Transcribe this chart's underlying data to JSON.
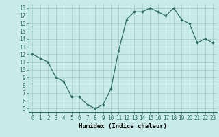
{
  "x": [
    0,
    1,
    2,
    3,
    4,
    5,
    6,
    7,
    8,
    9,
    10,
    11,
    12,
    13,
    14,
    15,
    16,
    17,
    18,
    19,
    20,
    21,
    22,
    23
  ],
  "y": [
    12,
    11.5,
    11,
    9,
    8.5,
    6.5,
    6.5,
    5.5,
    5,
    5.5,
    7.5,
    12.5,
    16.5,
    17.5,
    17.5,
    18,
    17.5,
    17,
    18,
    16.5,
    16,
    13.5,
    14,
    13.5
  ],
  "xlabel": "Humidex (Indice chaleur)",
  "xlim": [
    -0.5,
    23.5
  ],
  "ylim": [
    4.5,
    18.5
  ],
  "yticks": [
    5,
    6,
    7,
    8,
    9,
    10,
    11,
    12,
    13,
    14,
    15,
    16,
    17,
    18
  ],
  "xticks": [
    0,
    1,
    2,
    3,
    4,
    5,
    6,
    7,
    8,
    9,
    10,
    11,
    12,
    13,
    14,
    15,
    16,
    17,
    18,
    19,
    20,
    21,
    22,
    23
  ],
  "line_color": "#2d6e63",
  "marker": "D",
  "marker_size": 1.8,
  "bg_color": "#c8eae8",
  "grid_color": "#a0ccc8",
  "xlabel_fontsize": 6.5,
  "tick_fontsize": 5.5,
  "line_width": 0.9
}
